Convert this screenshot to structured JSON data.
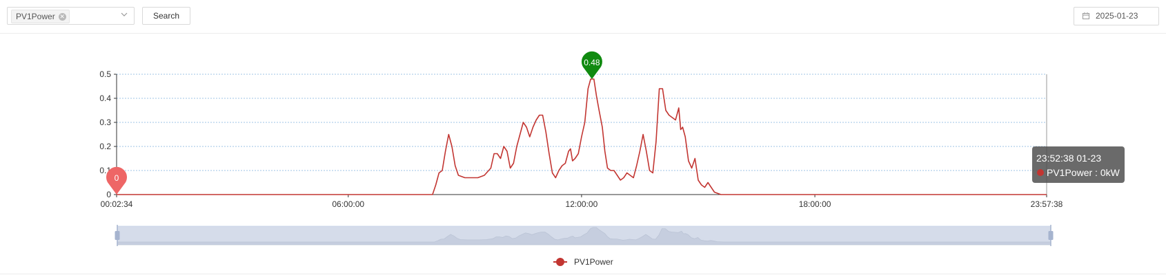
{
  "toolbar": {
    "selected_tag": "PV1Power",
    "search_label": "Search",
    "date_value": "2025-01-23"
  },
  "chart_data": {
    "type": "line",
    "series": [
      {
        "name": "PV1Power",
        "color": "#c23531",
        "points": [
          [
            "00:02:34",
            0
          ],
          [
            "08:10:00",
            0
          ],
          [
            "08:15:00",
            0.04
          ],
          [
            "08:20:00",
            0.09
          ],
          [
            "08:25:00",
            0.1
          ],
          [
            "08:30:00",
            0.18
          ],
          [
            "08:35:00",
            0.25
          ],
          [
            "08:40:00",
            0.2
          ],
          [
            "08:45:00",
            0.12
          ],
          [
            "08:50:00",
            0.08
          ],
          [
            "09:00:00",
            0.07
          ],
          [
            "09:10:00",
            0.07
          ],
          [
            "09:20:00",
            0.07
          ],
          [
            "09:30:00",
            0.08
          ],
          [
            "09:40:00",
            0.11
          ],
          [
            "09:45:00",
            0.17
          ],
          [
            "09:50:00",
            0.17
          ],
          [
            "09:55:00",
            0.15
          ],
          [
            "10:00:00",
            0.2
          ],
          [
            "10:05:00",
            0.18
          ],
          [
            "10:10:00",
            0.11
          ],
          [
            "10:15:00",
            0.13
          ],
          [
            "10:20:00",
            0.2
          ],
          [
            "10:25:00",
            0.25
          ],
          [
            "10:30:00",
            0.3
          ],
          [
            "10:35:00",
            0.28
          ],
          [
            "10:40:00",
            0.24
          ],
          [
            "10:45:00",
            0.28
          ],
          [
            "10:50:00",
            0.31
          ],
          [
            "10:55:00",
            0.33
          ],
          [
            "11:00:00",
            0.33
          ],
          [
            "11:05:00",
            0.26
          ],
          [
            "11:10:00",
            0.17
          ],
          [
            "11:15:00",
            0.09
          ],
          [
            "11:20:00",
            0.07
          ],
          [
            "11:25:00",
            0.1
          ],
          [
            "11:30:00",
            0.12
          ],
          [
            "11:35:00",
            0.13
          ],
          [
            "11:40:00",
            0.18
          ],
          [
            "11:43:00",
            0.19
          ],
          [
            "11:46:00",
            0.14
          ],
          [
            "11:50:00",
            0.15
          ],
          [
            "11:55:00",
            0.17
          ],
          [
            "12:00:00",
            0.24
          ],
          [
            "12:05:00",
            0.3
          ],
          [
            "12:10:00",
            0.44
          ],
          [
            "12:14:00",
            0.48
          ],
          [
            "12:19:00",
            0.48
          ],
          [
            "12:23:00",
            0.41
          ],
          [
            "12:27:00",
            0.35
          ],
          [
            "12:32:00",
            0.28
          ],
          [
            "12:36:00",
            0.18
          ],
          [
            "12:40:00",
            0.11
          ],
          [
            "12:45:00",
            0.1
          ],
          [
            "12:50:00",
            0.1
          ],
          [
            "12:55:00",
            0.08
          ],
          [
            "13:00:00",
            0.06
          ],
          [
            "13:05:00",
            0.07
          ],
          [
            "13:10:00",
            0.09
          ],
          [
            "13:15:00",
            0.08
          ],
          [
            "13:20:00",
            0.07
          ],
          [
            "13:25:00",
            0.12
          ],
          [
            "13:30:00",
            0.18
          ],
          [
            "13:35:00",
            0.25
          ],
          [
            "13:40:00",
            0.18
          ],
          [
            "13:45:00",
            0.1
          ],
          [
            "13:50:00",
            0.09
          ],
          [
            "13:55:00",
            0.22
          ],
          [
            "14:00:00",
            0.44
          ],
          [
            "14:05:00",
            0.44
          ],
          [
            "14:10:00",
            0.35
          ],
          [
            "14:15:00",
            0.33
          ],
          [
            "14:20:00",
            0.32
          ],
          [
            "14:25:00",
            0.31
          ],
          [
            "14:30:00",
            0.36
          ],
          [
            "14:33:00",
            0.27
          ],
          [
            "14:36:00",
            0.28
          ],
          [
            "14:40:00",
            0.24
          ],
          [
            "14:45:00",
            0.14
          ],
          [
            "14:50:00",
            0.11
          ],
          [
            "14:55:00",
            0.15
          ],
          [
            "15:00:00",
            0.06
          ],
          [
            "15:05:00",
            0.04
          ],
          [
            "15:10:00",
            0.03
          ],
          [
            "15:15:00",
            0.05
          ],
          [
            "15:20:00",
            0.03
          ],
          [
            "15:25:00",
            0.01
          ],
          [
            "15:35:00",
            0
          ],
          [
            "23:57:38",
            0
          ]
        ]
      }
    ],
    "xlim": [
      "00:02:34",
      "23:57:38"
    ],
    "x_ticks": [
      "00:02:34",
      "06:00:00",
      "12:00:00",
      "18:00:00",
      "23:57:38"
    ],
    "ylim": [
      0,
      0.5
    ],
    "y_ticks": [
      "0",
      "0.1",
      "0.2",
      "0.3",
      "0.4",
      "0.5"
    ],
    "grid": true,
    "max_marker": {
      "label": "0.48",
      "x": "12:16:00",
      "y": 0.48,
      "color": "#108a10"
    },
    "min_marker": {
      "label": "0",
      "x": "00:02:34",
      "y": 0,
      "color": "#ee6666"
    },
    "tooltip": {
      "line1": "23:52:38 01-23",
      "series": "PV1Power",
      "value_text": "PV1Power : 0kW"
    },
    "legend": {
      "position": "bottom",
      "items": [
        "PV1Power"
      ]
    },
    "datazoom": {
      "start": 0,
      "end": 100
    }
  }
}
